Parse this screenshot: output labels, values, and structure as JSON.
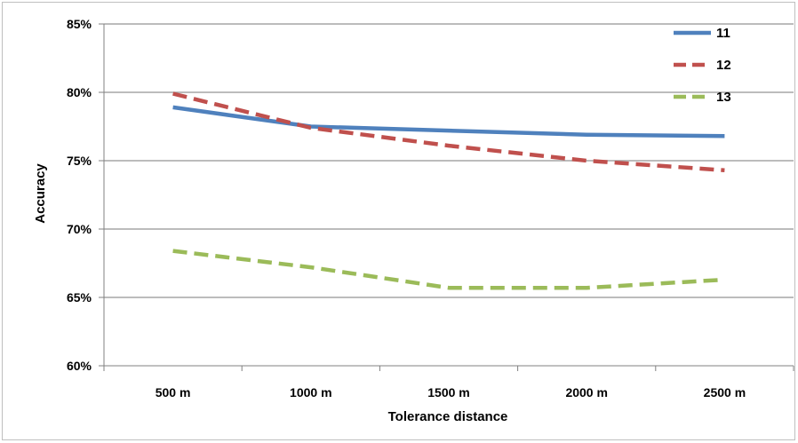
{
  "chart_data": {
    "type": "line",
    "title": "",
    "xlabel": "Tolerance distance",
    "ylabel": "Accuracy",
    "categories": [
      "500 m",
      "1000 m",
      "1500 m",
      "2000 m",
      "2500 m"
    ],
    "y_ticks": [
      "60%",
      "65%",
      "70%",
      "75%",
      "80%",
      "85%"
    ],
    "ylim": [
      0.6,
      0.85
    ],
    "grid": true,
    "legend_position": "top-right",
    "series": [
      {
        "name": "11",
        "color": "#4f81bd",
        "dash": "solid",
        "values": [
          0.789,
          0.775,
          0.772,
          0.769,
          0.768
        ]
      },
      {
        "name": "12",
        "color": "#c0504d",
        "dash": "dashed",
        "values": [
          0.799,
          0.774,
          0.761,
          0.75,
          0.743
        ]
      },
      {
        "name": "13",
        "color": "#9bbb59",
        "dash": "dashed",
        "values": [
          0.684,
          0.672,
          0.657,
          0.657,
          0.663
        ]
      }
    ]
  }
}
